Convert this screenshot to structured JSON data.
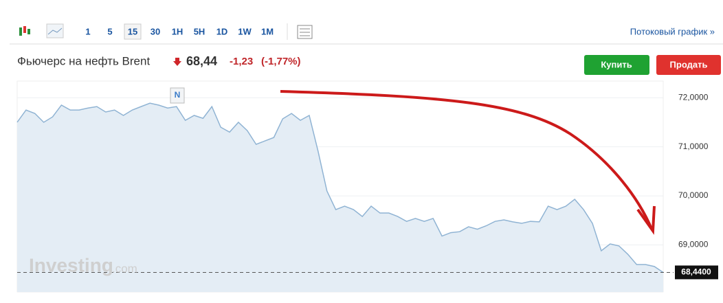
{
  "toolbar": {
    "intervals": [
      "1",
      "5",
      "15",
      "30",
      "1H",
      "5H",
      "1D",
      "1W",
      "1M"
    ],
    "selected": "15",
    "stream_link": "Потоковый график »"
  },
  "header": {
    "instrument": "Фьючерс на нефть Brent",
    "price": "68,44",
    "change": "-1,23",
    "change_pct": "(-1,77%)",
    "buy": "Купить",
    "sell": "Продать"
  },
  "watermark": {
    "brand": "Investing",
    "suffix": ".com"
  },
  "chart_data": {
    "type": "area",
    "color": "#8fb3d3",
    "fill": "#e4edf5",
    "annotations": [
      "N"
    ],
    "values": [
      71.5,
      71.75,
      71.68,
      71.5,
      71.61,
      71.85,
      71.75,
      71.75,
      71.79,
      71.82,
      71.71,
      71.75,
      71.64,
      71.75,
      71.82,
      71.89,
      71.85,
      71.79,
      71.82,
      71.54,
      71.64,
      71.58,
      71.82,
      71.4,
      71.3,
      71.5,
      71.33,
      71.05,
      71.12,
      71.19,
      71.57,
      71.68,
      71.54,
      71.64,
      70.91,
      70.1,
      69.72,
      69.79,
      69.72,
      69.58,
      69.79,
      69.65,
      69.65,
      69.58,
      69.48,
      69.54,
      69.48,
      69.54,
      69.18,
      69.25,
      69.27,
      69.37,
      69.32,
      69.39,
      69.48,
      69.51,
      69.47,
      69.44,
      69.48,
      69.47,
      69.79,
      69.72,
      69.79,
      69.93,
      69.72,
      69.44,
      68.88,
      69.02,
      68.98,
      68.81,
      68.6,
      68.6,
      68.56,
      68.44
    ],
    "ylim": [
      68.04,
      72.34
    ],
    "yticks": [
      {
        "value": 69,
        "label": "69,0000"
      },
      {
        "value": 70,
        "label": "70,0000"
      },
      {
        "value": 71,
        "label": "71,0000"
      },
      {
        "value": 72,
        "label": "72,0000"
      }
    ],
    "last_price": {
      "value": 68.44,
      "label": "68,4400"
    }
  }
}
